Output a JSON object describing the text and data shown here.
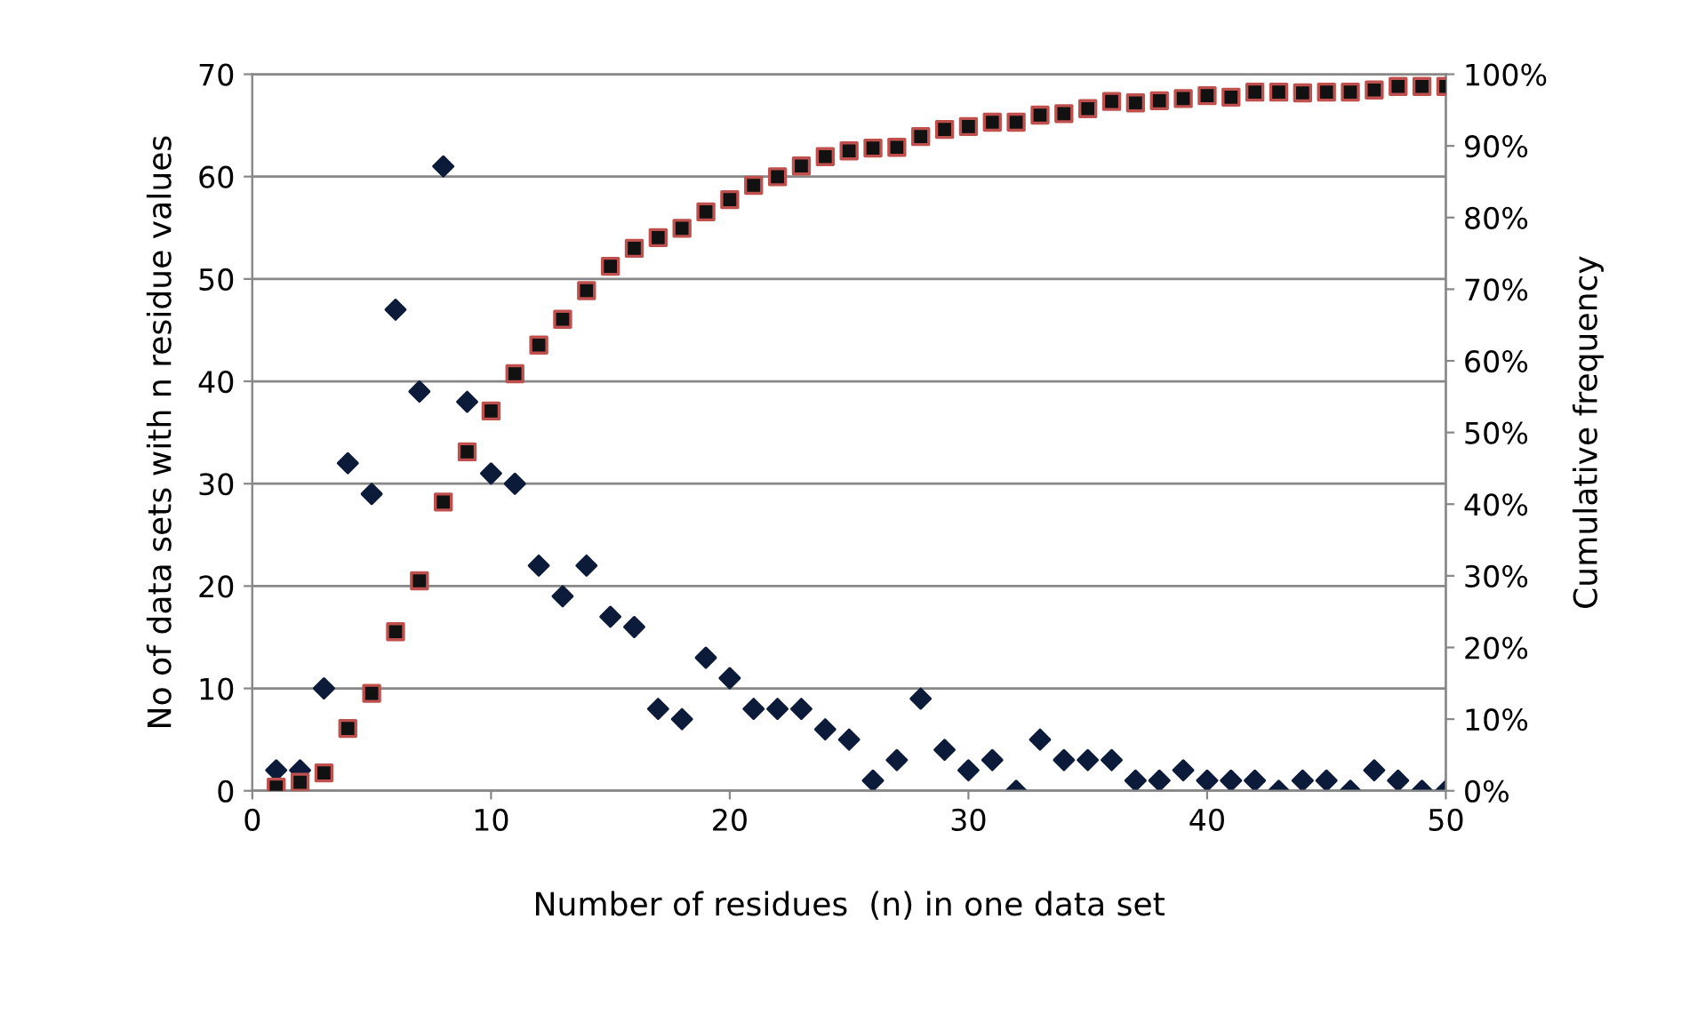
{
  "chart_data": {
    "type": "scatter",
    "xlabel": "Number of residues  (n) in one data set",
    "ylabel": "No of data sets with n residue values",
    "y2label": "Cumulative frequency",
    "x": [
      1,
      2,
      3,
      4,
      5,
      6,
      7,
      8,
      9,
      10,
      11,
      12,
      13,
      14,
      15,
      16,
      17,
      18,
      19,
      20,
      21,
      22,
      23,
      24,
      25,
      26,
      27,
      28,
      29,
      30,
      31,
      32,
      33,
      34,
      35,
      36,
      37,
      38,
      39,
      40,
      41,
      42,
      43,
      44,
      45,
      46,
      47,
      48,
      49,
      50
    ],
    "series": [
      {
        "color": "#0d1b3a",
        "marker": "diamond",
        "values": [
          2,
          2,
          10,
          32,
          29,
          47,
          39,
          61,
          38,
          31,
          30,
          22,
          19,
          22,
          17,
          16,
          8,
          7,
          13,
          11,
          8,
          8,
          8,
          6,
          5,
          1,
          3,
          9,
          4,
          2,
          3,
          0,
          5,
          3,
          3,
          3,
          1,
          1,
          2,
          1,
          1,
          1,
          0,
          1,
          1,
          0,
          2,
          1,
          0,
          0
        ]
      },
      {
        "color": "#111111",
        "marker": "square",
        "axis": "y2",
        "values": [
          0.5,
          1.2,
          2.5,
          8.7,
          13.6,
          22.2,
          29.3,
          40.3,
          47.3,
          53,
          58.2,
          62.2,
          65.8,
          69.8,
          73.2,
          75.7,
          77.2,
          78.5,
          80.8,
          82.5,
          84.5,
          85.7,
          87.2,
          88.5,
          89.3,
          89.7,
          89.8,
          91.3,
          92.3,
          92.7,
          93.3,
          93.3,
          94.3,
          94.5,
          95.2,
          96.2,
          96.0,
          96.3,
          96.6,
          97.0,
          96.8,
          97.5,
          97.5,
          97.4,
          97.5,
          97.5,
          97.8,
          98.3,
          98.3,
          98.3
        ]
      }
    ],
    "xlim": [
      0,
      50
    ],
    "xticks": [
      0,
      10,
      20,
      30,
      40,
      50
    ],
    "ylim": [
      0,
      70
    ],
    "yticks": [
      0,
      10,
      20,
      30,
      40,
      50,
      60,
      70
    ],
    "y2lim": [
      0,
      100
    ],
    "y2ticks": [
      {
        "value": 0,
        "label": "0%"
      },
      {
        "value": 10,
        "label": "10%"
      },
      {
        "value": 20,
        "label": "20%"
      },
      {
        "value": 30,
        "label": "30%"
      },
      {
        "value": 40,
        "label": "40%"
      },
      {
        "value": 50,
        "label": "50%"
      },
      {
        "value": 60,
        "label": "60%"
      },
      {
        "value": 70,
        "label": "70%"
      },
      {
        "value": 80,
        "label": "80%"
      },
      {
        "value": 90,
        "label": "90%"
      },
      {
        "value": 100,
        "label": "100%"
      }
    ],
    "grid": "y",
    "legend": false
  }
}
